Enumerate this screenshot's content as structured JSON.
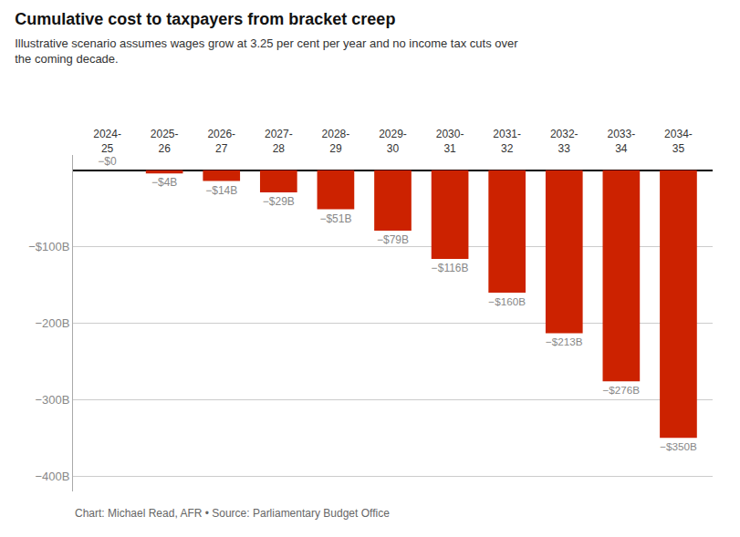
{
  "chart_data": {
    "type": "bar",
    "title": "Cumulative cost to taxpayers from bracket creep",
    "subtitle": "Illustrative scenario assumes wages grow at 3.25 per cent per year and no income tax cuts over\nthe coming decade.",
    "annotations": [
      "Chart: Michael Read, AFR • Source: Parliamentary Budget Office"
    ],
    "categories": [
      "2024-\n25",
      "2025-\n26",
      "2026-\n27",
      "2027-\n28",
      "2028-\n29",
      "2029-\n30",
      "2030-\n31",
      "2031-\n32",
      "2032-\n33",
      "2033-\n34",
      "2034-\n35"
    ],
    "values": [
      0,
      -4,
      -14,
      -29,
      -51,
      -79,
      -116,
      -160,
      -213,
      -276,
      -350
    ],
    "value_labels": [
      "−$0",
      "−$4B",
      "−$14B",
      "−$29B",
      "−$51B",
      "−$79B",
      "−$116B",
      "−$160B",
      "−$213B",
      "−$276B",
      "−$350B"
    ],
    "data_labels": true,
    "color": "#cc2200",
    "ylim": [
      -420,
      20
    ],
    "yticks": [
      {
        "value": -100,
        "label": "−$100B"
      },
      {
        "value": -200,
        "label": "−200B"
      },
      {
        "value": -300,
        "label": "−300B"
      },
      {
        "value": -400,
        "label": "−400B"
      }
    ],
    "grid": true
  }
}
